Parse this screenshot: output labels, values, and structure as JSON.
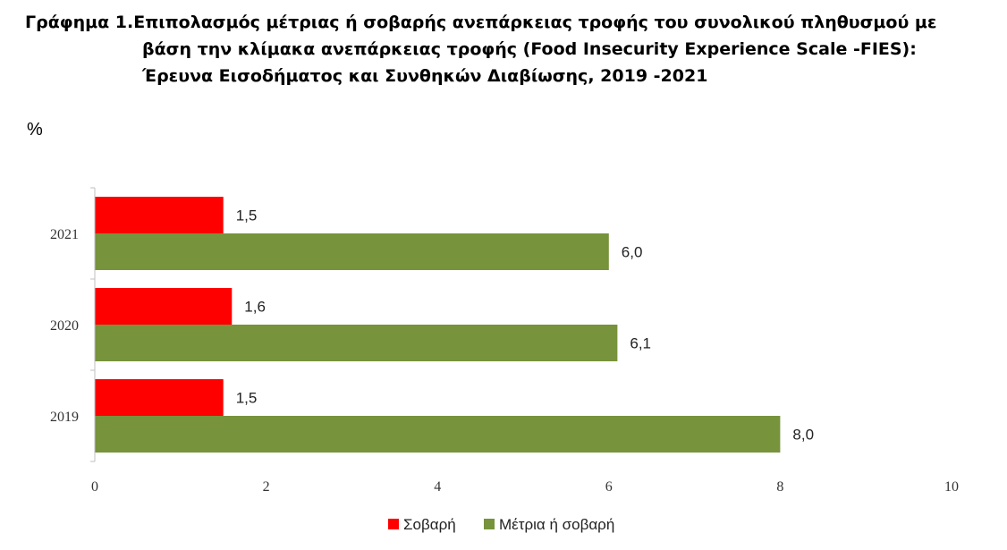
{
  "title": {
    "line1": "Γράφημα 1.Επιπολασμός μέτριας ή σοβαρής ανεπάρκειας τροφής του συνολικού πληθυσμού με",
    "line2": "βάση την κλίμακα ανεπάρκειας τροφής (Food Insecurity Experience Scale -FIES):",
    "line3": "Έρευνα Εισοδήματος και Συνθηκών Διαβίωσης, 2019 -2021"
  },
  "unit_label": "%",
  "chart_data": {
    "type": "bar",
    "orientation": "horizontal",
    "categories": [
      "2021",
      "2020",
      "2019"
    ],
    "series": [
      {
        "name": "Σοβαρή",
        "color": "#ff0000",
        "values": [
          1.5,
          1.6,
          1.5
        ],
        "labels": [
          "1,5",
          "1,6",
          "1,5"
        ]
      },
      {
        "name": "Μέτρια ή σοβαρή",
        "color": "#77933c",
        "values": [
          6.0,
          6.1,
          8.0
        ],
        "labels": [
          "6,0",
          "6,1",
          "8,0"
        ]
      }
    ],
    "xlim": [
      0,
      10
    ],
    "xticks": [
      0,
      2,
      4,
      6,
      8,
      10
    ],
    "legend_position": "bottom"
  }
}
